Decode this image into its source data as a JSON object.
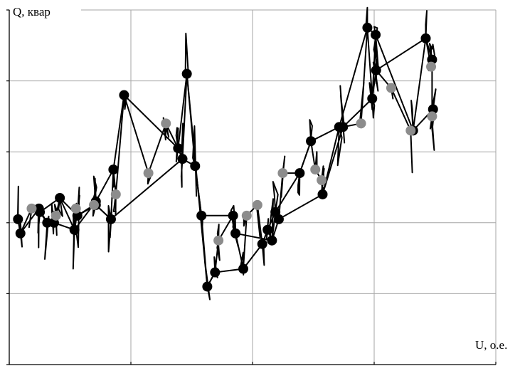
{
  "chart_data": {
    "type": "scatter",
    "title": "",
    "xlabel": "U, о.е.",
    "ylabel": "Q, квар",
    "x_tick_labels": [],
    "y_tick_labels": [],
    "xlim": [
      0,
      1
    ],
    "ylim": [
      0,
      1
    ],
    "grid": true,
    "series": [
      {
        "style": "black-markers-with-line",
        "color": "#000000",
        "x": [
          0.018,
          0.023,
          0.061,
          0.078,
          0.092,
          0.134,
          0.178,
          0.214,
          0.236,
          0.347,
          0.365,
          0.407,
          0.423,
          0.481,
          0.52,
          0.531,
          0.547,
          0.597,
          0.62,
          0.678,
          0.736,
          0.753,
          0.83,
          0.871
        ],
        "y": [
          0.41,
          0.37,
          0.44,
          0.4,
          0.4,
          0.38,
          0.46,
          0.55,
          0.76,
          0.61,
          0.82,
          0.22,
          0.26,
          0.27,
          0.34,
          0.38,
          0.43,
          0.54,
          0.63,
          0.67,
          0.95,
          0.93,
          0.66,
          0.72
        ]
      },
      {
        "style": "black-markers-with-line-2",
        "color": "#000000",
        "x": [
          0.063,
          0.104,
          0.14,
          0.178,
          0.209,
          0.356,
          0.382,
          0.395,
          0.46,
          0.465,
          0.54,
          0.554,
          0.644,
          0.686,
          0.746,
          0.754,
          0.856,
          0.869
        ],
        "y": [
          0.43,
          0.47,
          0.42,
          0.45,
          0.41,
          0.58,
          0.56,
          0.42,
          0.42,
          0.37,
          0.35,
          0.41,
          0.48,
          0.67,
          0.75,
          0.83,
          0.92,
          0.86
        ]
      },
      {
        "style": "gray-markers",
        "color": "#8c8c8c",
        "x": [
          0.046,
          0.096,
          0.137,
          0.174,
          0.219,
          0.286,
          0.322,
          0.43,
          0.488,
          0.51,
          0.562,
          0.629,
          0.642,
          0.723,
          0.785,
          0.825,
          0.867,
          0.869
        ],
        "y": [
          0.44,
          0.42,
          0.44,
          0.45,
          0.48,
          0.54,
          0.68,
          0.35,
          0.42,
          0.45,
          0.54,
          0.55,
          0.52,
          0.68,
          0.78,
          0.66,
          0.84,
          0.7
        ]
      }
    ]
  }
}
